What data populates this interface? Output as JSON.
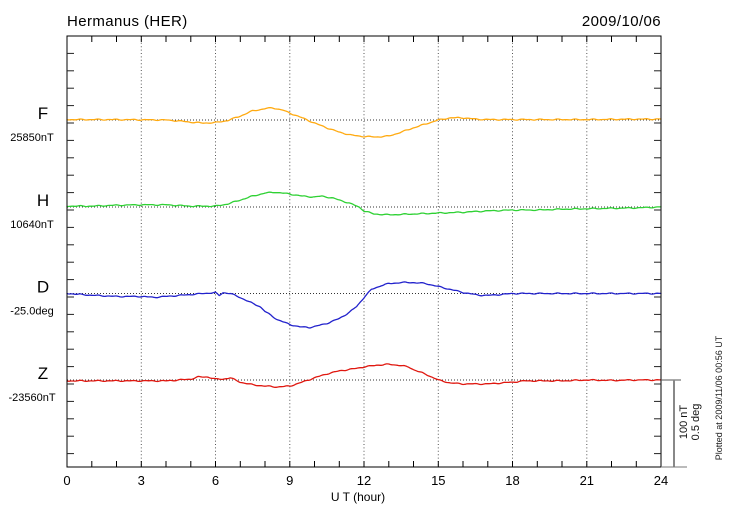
{
  "header": {
    "title": "Hermanus (HER)",
    "date": "2009/10/06"
  },
  "xaxis": {
    "label": "U T (hour)"
  },
  "scalebar": {
    "labels": [
      "100 nT",
      "0.5 deg"
    ],
    "nT": 100,
    "deg": 0.5
  },
  "note": "Plotted at 2009/11/06 00:56 UT",
  "chart_data": {
    "type": "line",
    "title": "Hermanus (HER)",
    "date": "2009/10/06",
    "xlabel": "U T (hour)",
    "x_range": [
      0,
      24
    ],
    "x_ticks": [
      0,
      3,
      6,
      9,
      12,
      15,
      18,
      21,
      24
    ],
    "grid": "dotted vertical gridlines every 3 hours; dotted horizontal line at each trace baseline; minor ticks every hour (x) and every 20 nT (y)",
    "legend_position": "left margin, one label per trace",
    "scale_bar": {
      "nT_per_bar": 100,
      "deg_per_bar": 0.5
    },
    "series": [
      {
        "name": "F",
        "baseline_label": "25850nT",
        "baseline_value": 25850,
        "unit": "nT",
        "color": "#FFAA11",
        "x": [
          0,
          2,
          4,
          4.5,
          5,
          5.5,
          6,
          6.5,
          7,
          7.5,
          8,
          8.3,
          8.7,
          9,
          9.5,
          10,
          10.5,
          11,
          11.5,
          12,
          12.5,
          13,
          13.5,
          14,
          14.5,
          15,
          15.5,
          16,
          16.5,
          17,
          19,
          21,
          23,
          24
        ],
        "delta": [
          0.5,
          0.5,
          0,
          -1,
          -2.5,
          -3.5,
          -3,
          -0.5,
          4.5,
          10.5,
          13,
          14,
          11.5,
          8,
          2.5,
          -3.5,
          -9,
          -14,
          -17.5,
          -19,
          -19.5,
          -18.5,
          -14,
          -9,
          -4.5,
          0,
          2.5,
          2.5,
          1,
          0.5,
          0.5,
          0.5,
          1,
          1
        ]
      },
      {
        "name": "H",
        "baseline_label": "10640nT",
        "baseline_value": 10640,
        "unit": "nT",
        "color": "#2FD134",
        "x": [
          0,
          1,
          2,
          3,
          4,
          5,
          6,
          6.5,
          7,
          7.5,
          8,
          8.4,
          9,
          9.5,
          10,
          10.3,
          10.7,
          11,
          11.4,
          11.8,
          12,
          12.4,
          13,
          14,
          15,
          16,
          17,
          18,
          19,
          20,
          21,
          22,
          23,
          24
        ],
        "delta": [
          1,
          1,
          2,
          2.5,
          2.5,
          1,
          1,
          3.5,
          8,
          12.5,
          16,
          17,
          15,
          12.5,
          11.5,
          12.5,
          10.5,
          8,
          4.5,
          0,
          -4.5,
          -8,
          -9,
          -8,
          -7,
          -6,
          -4.5,
          -3.5,
          -3.5,
          -2.5,
          -2,
          -1.5,
          -1,
          0
        ]
      },
      {
        "name": "D",
        "baseline_label": "-25.0deg",
        "baseline_value": -25.0,
        "unit": "deg",
        "color": "#2222CC",
        "x": [
          0,
          0.5,
          1,
          2,
          3,
          3.5,
          4,
          5,
          5.5,
          6,
          6.15,
          6.3,
          6.6,
          7,
          7.5,
          7.8,
          8,
          8.5,
          9,
          9.4,
          9.8,
          10,
          10.5,
          11,
          11.4,
          11.7,
          12,
          12.3,
          12.7,
          13,
          13.5,
          14,
          14.5,
          15,
          15.5,
          16,
          16.6,
          17,
          17.5,
          18,
          20,
          22,
          24
        ],
        "delta": [
          0,
          -0.005,
          -0.01,
          -0.017,
          -0.017,
          -0.022,
          -0.017,
          -0.006,
          0,
          0.005,
          -0.012,
          0.005,
          0,
          -0.023,
          -0.057,
          -0.075,
          -0.103,
          -0.15,
          -0.178,
          -0.192,
          -0.195,
          -0.19,
          -0.172,
          -0.144,
          -0.109,
          -0.075,
          -0.023,
          0.023,
          0.046,
          0.057,
          0.063,
          0.063,
          0.057,
          0.04,
          0.023,
          0.006,
          -0.009,
          -0.011,
          -0.006,
          0,
          0,
          0,
          0
        ]
      },
      {
        "name": "Z",
        "baseline_label": "-23560nT",
        "baseline_value": -23560,
        "unit": "nT",
        "color": "#E01810",
        "x": [
          0,
          1,
          2,
          3,
          4,
          4.5,
          5,
          5.3,
          5.7,
          6,
          6.3,
          6.6,
          7,
          7.5,
          8,
          8.5,
          9,
          9.5,
          10,
          10.5,
          11,
          11.5,
          12,
          12.5,
          13,
          13.4,
          13.8,
          14,
          14.5,
          15,
          15.5,
          16,
          17,
          17.5,
          18,
          18.5,
          19,
          20,
          21,
          22,
          23,
          24
        ],
        "delta": [
          -1,
          -1,
          -1,
          -1,
          -1,
          0,
          1,
          3.5,
          3.5,
          1,
          1,
          2.5,
          -2.5,
          -5.5,
          -7,
          -8,
          -7,
          -2.5,
          2.5,
          7,
          10.5,
          12.5,
          15,
          17,
          18,
          17,
          15,
          12,
          6.5,
          0,
          -3.5,
          -4.5,
          -4.5,
          -3.5,
          -2.5,
          -1,
          -1,
          -1,
          0,
          -0.5,
          0,
          0
        ]
      }
    ]
  }
}
